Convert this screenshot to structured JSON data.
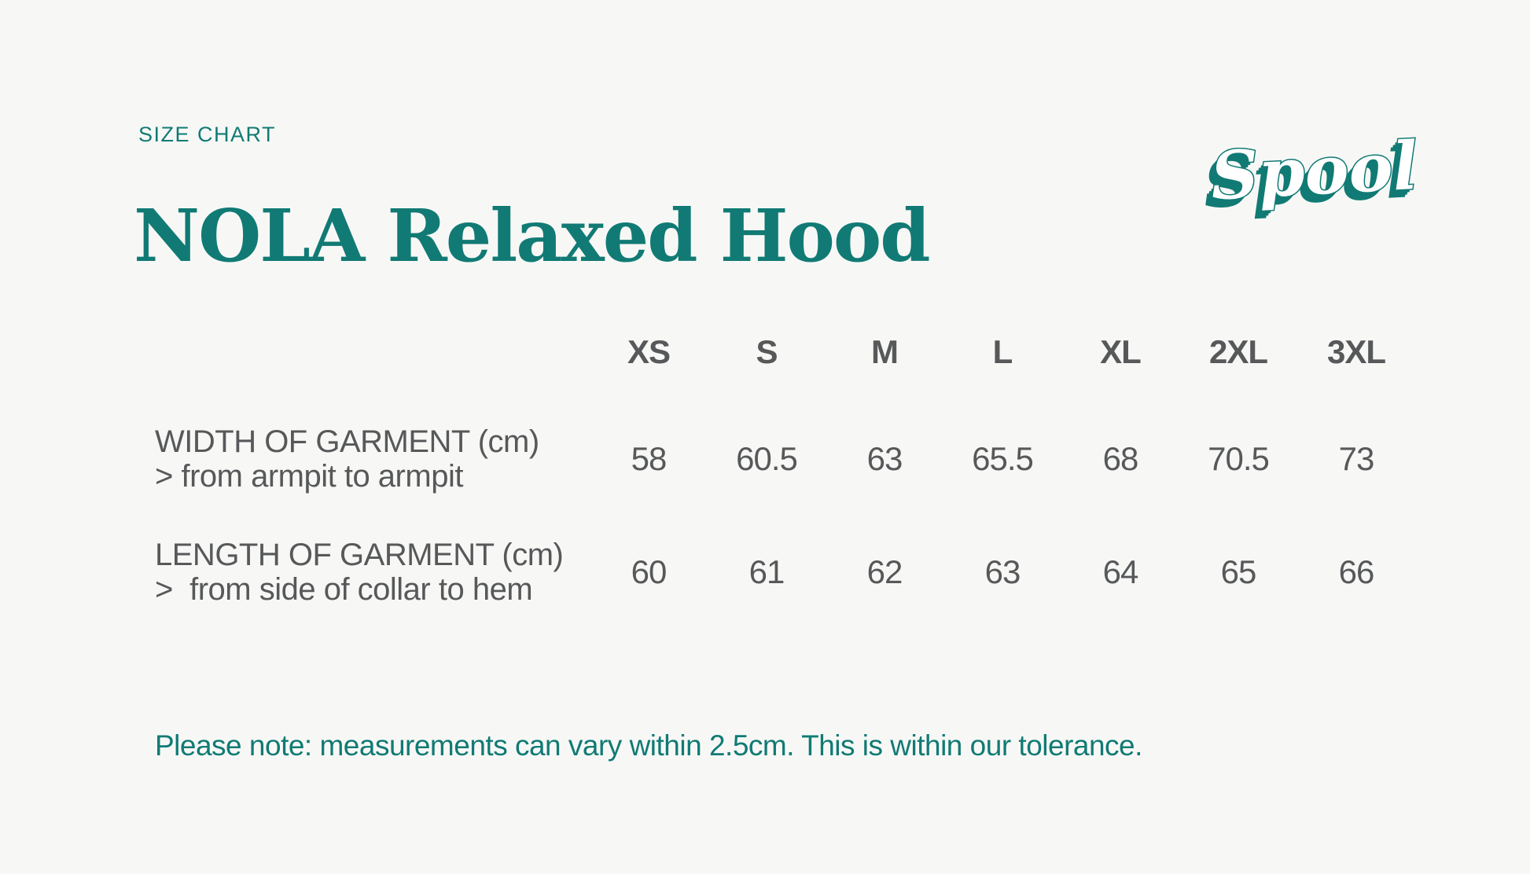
{
  "header": {
    "eyebrow": "SIZE CHART",
    "title": "NOLA Relaxed Hood",
    "brand": "Spool"
  },
  "colors": {
    "accent_teal": "#117A74",
    "text_gray": "#575859",
    "background": "#F7F8F6"
  },
  "chart_data": {
    "type": "table",
    "title": "NOLA Relaxed Hood size chart",
    "columns": [
      "XS",
      "S",
      "M",
      "L",
      "XL",
      "2XL",
      "3XL"
    ],
    "rows": [
      {
        "label": "WIDTH OF GARMENT (cm)",
        "sublabel": "> from armpit to armpit",
        "values": [
          "58",
          "60.5",
          "63",
          "65.5",
          "68",
          "70.5",
          "73"
        ]
      },
      {
        "label": "LENGTH OF GARMENT (cm)",
        "sublabel": ">  from side of collar to hem",
        "values": [
          "60",
          "61",
          "62",
          "63",
          "64",
          "65",
          "66"
        ]
      }
    ]
  },
  "footer": {
    "note": "Please note: measurements can vary within 2.5cm. This is within our tolerance."
  }
}
